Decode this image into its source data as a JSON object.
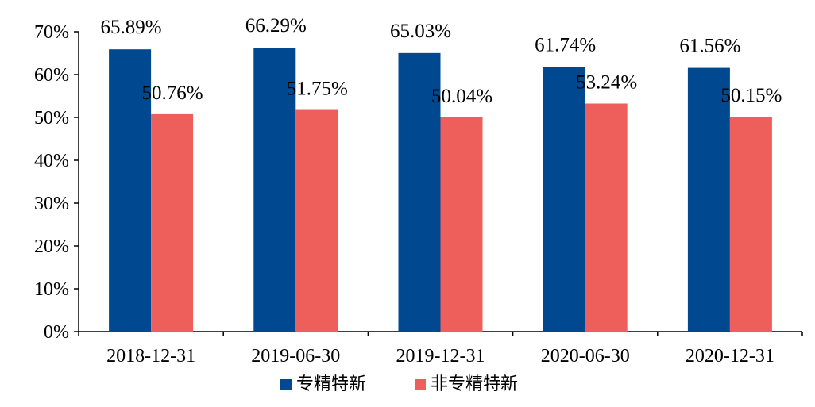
{
  "chart_data": {
    "type": "bar",
    "title": "",
    "xlabel": "",
    "ylabel": "",
    "ylim": [
      0,
      70
    ],
    "yticks": [
      0,
      10,
      20,
      30,
      40,
      50,
      60,
      70
    ],
    "ytick_labels": [
      "0%",
      "10%",
      "20%",
      "30%",
      "40%",
      "50%",
      "60%",
      "70%"
    ],
    "categories": [
      "2018-12-31",
      "2019-06-30",
      "2019-12-31",
      "2020-06-30",
      "2020-12-31"
    ],
    "grid": false,
    "legend_position": "bottom",
    "series": [
      {
        "name": "专精特新",
        "color": "#004990",
        "values": [
          65.89,
          66.29,
          65.03,
          61.74,
          61.56
        ],
        "labels": [
          "65.89%",
          "66.29%",
          "65.03%",
          "61.74%",
          "61.56%"
        ]
      },
      {
        "name": "非专精特新",
        "color": "#EE5F5B",
        "values": [
          50.76,
          51.75,
          50.04,
          53.24,
          50.15
        ],
        "labels": [
          "50.76%",
          "51.75%",
          "50.04%",
          "53.24%",
          "50.15%"
        ]
      }
    ]
  }
}
